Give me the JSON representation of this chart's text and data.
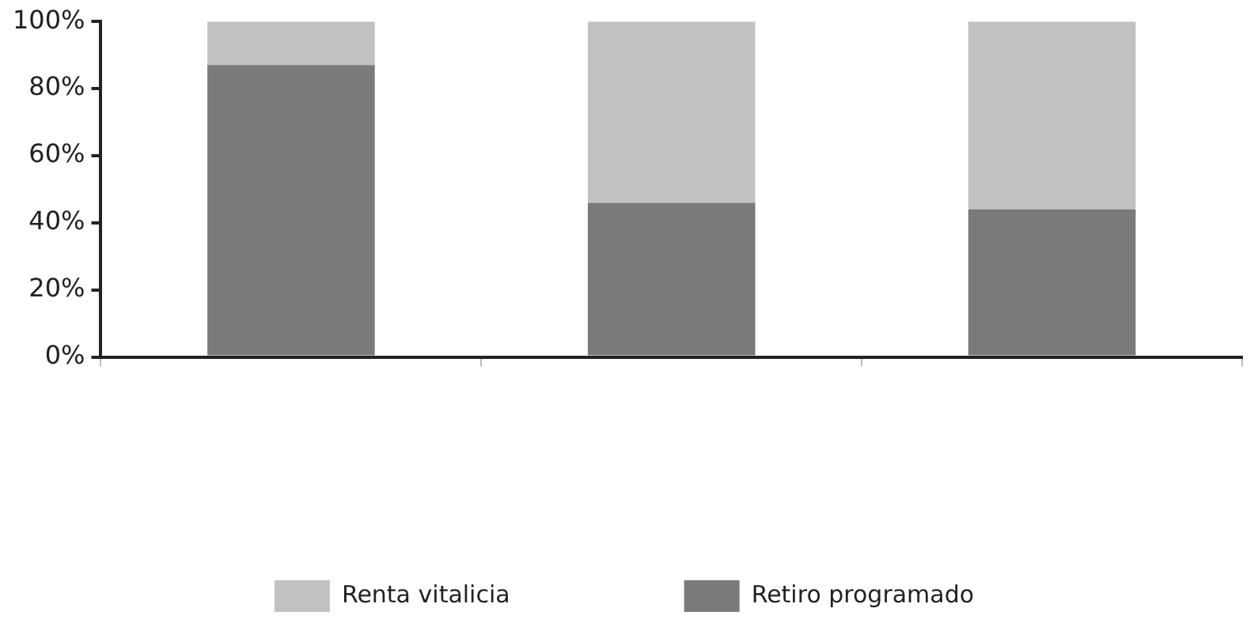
{
  "chart_data": {
    "type": "bar",
    "stacked": true,
    "categories": [
      null,
      null,
      null
    ],
    "series": [
      {
        "name": "Retiro programado",
        "color": "#7a7a7a",
        "values": [
          87,
          46,
          44
        ]
      },
      {
        "name": "Renta vitalicia",
        "color": "#c2c2c2",
        "values": [
          13,
          54,
          56
        ]
      }
    ],
    "ylim": [
      0,
      100
    ],
    "yticks": [
      {
        "value": 0,
        "label": "0%"
      },
      {
        "value": 20,
        "label": "20%"
      },
      {
        "value": 40,
        "label": "40%"
      },
      {
        "value": 60,
        "label": "60%"
      },
      {
        "value": 80,
        "label": "80%"
      },
      {
        "value": 100,
        "label": "100%"
      }
    ],
    "legend": "bottom"
  }
}
